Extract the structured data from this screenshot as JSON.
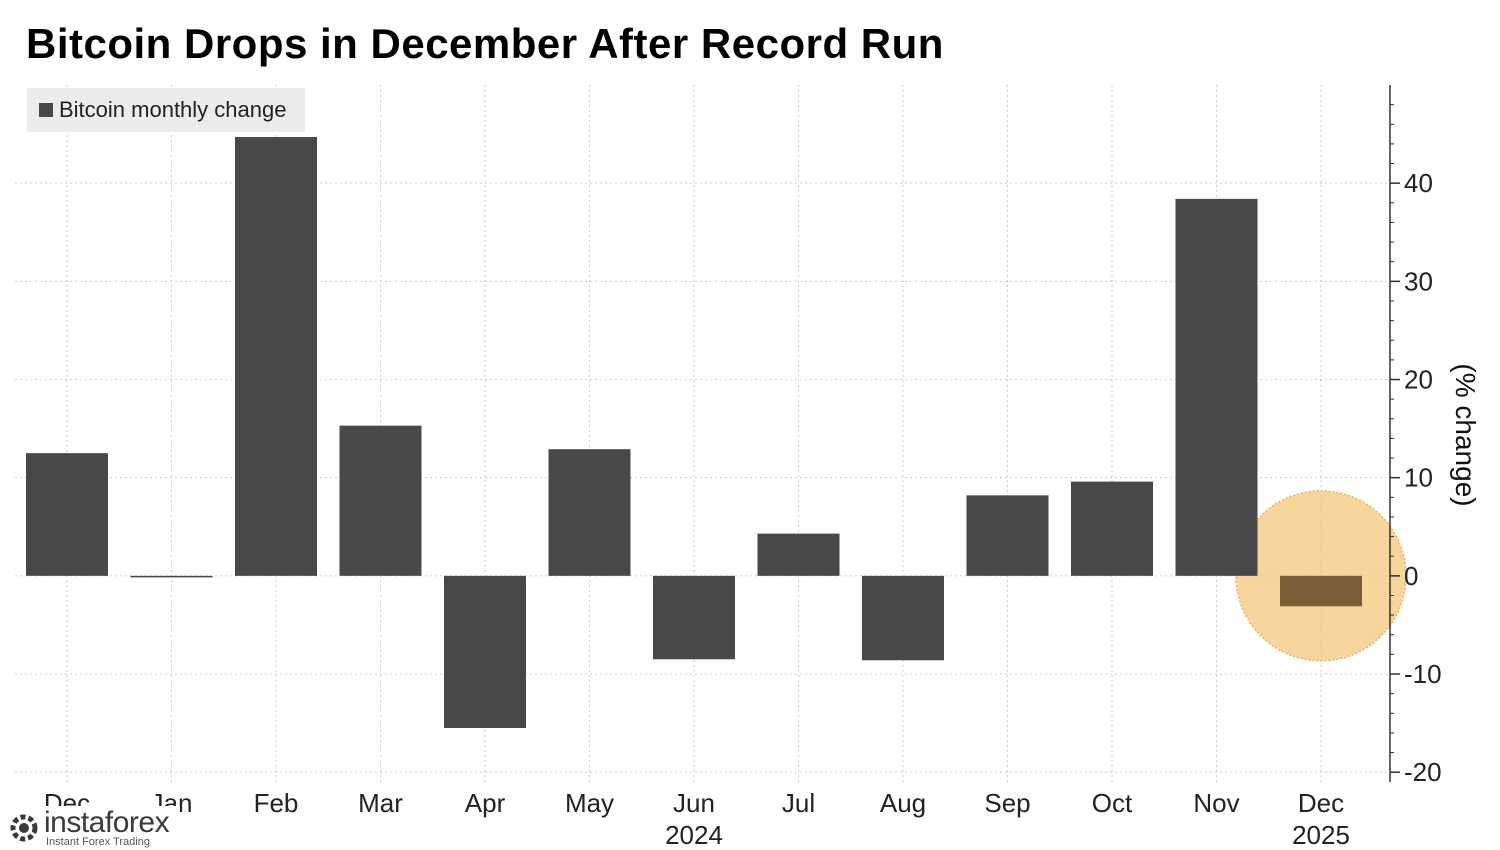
{
  "chart_data": {
    "type": "bar",
    "title": "Bitcoin Drops in December After Record Run",
    "ylabel": "(% change)",
    "legend": {
      "label": "Bitcoin monthly change",
      "placement": "top-left"
    },
    "categories": [
      "Dec",
      "Jan",
      "Feb",
      "Mar",
      "Apr",
      "May",
      "Jun",
      "Jul",
      "Aug",
      "Sep",
      "Oct",
      "Nov",
      "Dec"
    ],
    "year_labels": [
      {
        "index": 6,
        "label": "2024"
      },
      {
        "index": 12,
        "label": "2025"
      }
    ],
    "series": [
      {
        "name": "Bitcoin monthly change",
        "values": [
          12.5,
          0.0,
          44.7,
          15.3,
          -15.5,
          12.9,
          -8.5,
          4.3,
          -8.6,
          8.2,
          9.6,
          38.4,
          -3.1
        ]
      }
    ],
    "ylim": [
      -21,
      50
    ],
    "yticks": [
      -20,
      -10,
      0,
      10,
      20,
      30,
      40
    ],
    "grid": true,
    "highlight": {
      "index": 12,
      "color": "#f5c77a"
    },
    "colors": {
      "bar": "#484848",
      "highlight_bar": "#7a5e37",
      "grid": "#cccccc"
    }
  },
  "watermark": {
    "brand": "instaforex",
    "tagline": "Instant Forex Trading",
    "icon": "gear-logo-icon"
  }
}
